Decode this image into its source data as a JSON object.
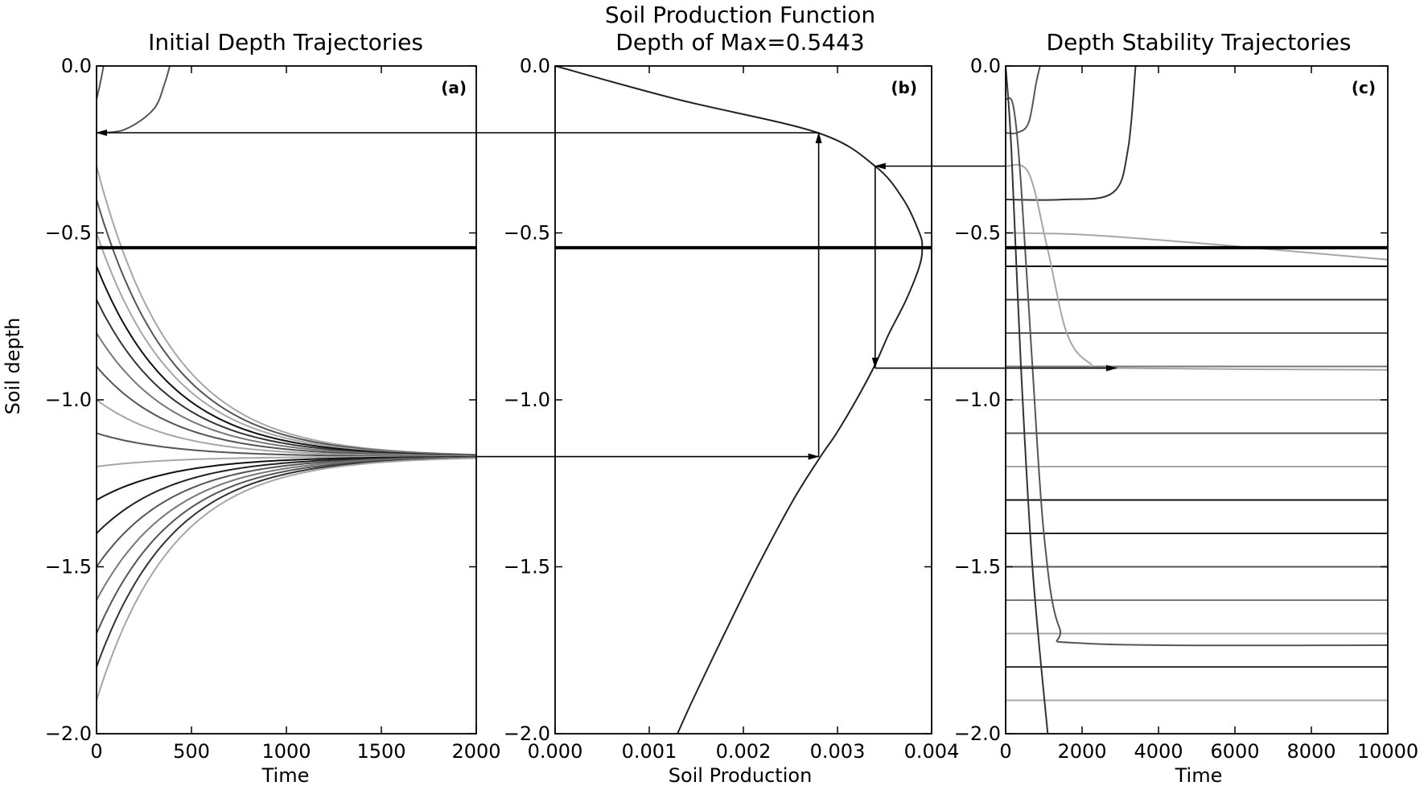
{
  "figure": {
    "suptitle_line1": "Soil Production Function",
    "suptitle_line2": "Depth of Max=0.5443",
    "ylabel": "Soil depth"
  },
  "chart_data": [
    {
      "id": "a",
      "type": "line",
      "title": "Initial Depth Trajectories",
      "panel_label": "(a)",
      "xlabel": "Time",
      "ylabel": "Soil depth",
      "xlim": [
        0,
        2000
      ],
      "ylim": [
        -2.0,
        0.0
      ],
      "xticks": [
        0,
        500,
        1000,
        1500,
        2000
      ],
      "xtick_labels": [
        "0",
        "500",
        "1000",
        "1500",
        "2000"
      ],
      "yticks": [
        0.0,
        -0.5,
        -1.0,
        -1.5,
        -2.0
      ],
      "ytick_labels": [
        "0.0",
        "−0.5",
        "−1.0",
        "−1.5",
        "−2.0"
      ],
      "max_depth_line": -0.5443,
      "steady_depth": -1.17,
      "decay_time": 400,
      "thin_start_depths": [
        -0.1,
        -0.2
      ],
      "series_start_depths": [
        -0.3,
        -0.4,
        -0.5,
        -0.6,
        -0.7,
        -0.8,
        -0.9,
        -1.0,
        -1.1,
        -1.2,
        -1.3,
        -1.4,
        -1.5,
        -1.6,
        -1.7,
        -1.8,
        -1.9
      ],
      "series_colors": [
        "#a6a6a6",
        "#555555",
        "#a6a6a6",
        "#111111",
        "#333333",
        "#777777",
        "#555555",
        "#a6a6a6",
        "#555555",
        "#a6a6a6",
        "#111111",
        "#222222",
        "#555555",
        "#777777",
        "#555555",
        "#333333",
        "#a6a6a6"
      ]
    },
    {
      "id": "b",
      "type": "line",
      "title": "Soil Production Function",
      "panel_label": "(b)",
      "xlabel": "Soil Production",
      "xlim": [
        0.0,
        0.004
      ],
      "ylim": [
        -2.0,
        0.0
      ],
      "xticks": [
        0.0,
        0.001,
        0.002,
        0.003,
        0.004
      ],
      "xtick_labels": [
        "0.000",
        "0.001",
        "0.002",
        "0.003",
        "0.004"
      ],
      "yticks": [
        0.0,
        -0.5,
        -1.0,
        -1.5,
        -2.0
      ],
      "ytick_labels": [
        "0.0",
        "−0.5",
        "−1.0",
        "−1.5",
        "−2.0"
      ],
      "max_depth_line": -0.5443,
      "curve": {
        "depth": [
          0.0,
          -0.1,
          -0.2,
          -0.3,
          -0.4,
          -0.5,
          -0.5443,
          -0.6,
          -0.7,
          -0.8,
          -0.9,
          -1.0,
          -1.1,
          -1.17,
          -1.3,
          -1.5,
          -1.7,
          -1.9,
          -2.0
        ],
        "production": [
          0.0,
          0.0013,
          0.00279,
          0.0034,
          0.0037,
          0.00387,
          0.0039,
          0.00387,
          0.00373,
          0.00355,
          0.00339,
          0.0032,
          0.00299,
          0.00282,
          0.00253,
          0.00215,
          0.0018,
          0.00146,
          0.0013
        ]
      }
    },
    {
      "id": "c",
      "type": "line",
      "title": "Depth Stability Trajectories",
      "panel_label": "(c)",
      "xlabel": "Time",
      "xlim": [
        0,
        10000
      ],
      "ylim": [
        -2.0,
        0.0
      ],
      "xticks": [
        0,
        2000,
        4000,
        6000,
        8000,
        10000
      ],
      "xtick_labels": [
        "0",
        "2000",
        "4000",
        "6000",
        "8000",
        "10000"
      ],
      "yticks": [
        0.0,
        -0.5,
        -1.0,
        -1.5,
        -2.0
      ],
      "ytick_labels": [
        "0.0",
        "−0.5",
        "−1.0",
        "−1.5",
        "−2.0"
      ],
      "max_depth_line": -0.5443,
      "horizontal_depths": [
        -0.6,
        -0.7,
        -0.8,
        -0.9,
        -1.0,
        -1.1,
        -1.2,
        -1.3,
        -1.4,
        -1.5,
        -1.6,
        -1.7,
        -1.8,
        -1.9
      ],
      "horizontal_colors": [
        "#111111",
        "#333333",
        "#555555",
        "#777777",
        "#a6a6a6",
        "#555555",
        "#a6a6a6",
        "#111111",
        "#222222",
        "#555555",
        "#777777",
        "#a6a6a6",
        "#333333",
        "#a6a6a6"
      ],
      "curves": [
        {
          "color": "#555555",
          "points": [
            [
              0,
              -0.2
            ],
            [
              300,
              -0.2
            ],
            [
              600,
              -0.17
            ],
            [
              800,
              -0.05
            ],
            [
              900,
              0.0
            ]
          ]
        },
        {
          "color": "#333333",
          "points": [
            [
              0,
              -0.4
            ],
            [
              1500,
              -0.4
            ],
            [
              2800,
              -0.38
            ],
            [
              3200,
              -0.25
            ],
            [
              3400,
              0.0
            ]
          ]
        },
        {
          "color": "#a6a6a6",
          "points": [
            [
              0,
              -0.5
            ],
            [
              2000,
              -0.505
            ],
            [
              5000,
              -0.53
            ],
            [
              7000,
              -0.55
            ],
            [
              10000,
              -0.58
            ]
          ]
        },
        {
          "color": "#a6a6a6",
          "points": [
            [
              0,
              -0.3
            ],
            [
              600,
              -0.32
            ],
            [
              1100,
              -0.55
            ],
            [
              1600,
              -0.8
            ],
            [
              2200,
              -0.89
            ],
            [
              3000,
              -0.905
            ],
            [
              10000,
              -0.91
            ]
          ]
        },
        {
          "color": "#555555",
          "points": [
            [
              0,
              -0.1
            ],
            [
              200,
              -0.12
            ],
            [
              400,
              -0.35
            ],
            [
              700,
              -0.9
            ],
            [
              1000,
              -1.4
            ],
            [
              1400,
              -1.68
            ],
            [
              2200,
              -1.73
            ],
            [
              10000,
              -1.735
            ]
          ]
        },
        {
          "color": "#333333",
          "points": [
            [
              0,
              0.0
            ],
            [
              150,
              -0.25
            ],
            [
              400,
              -0.9
            ],
            [
              700,
              -1.5
            ],
            [
              1100,
              -2.0
            ]
          ]
        }
      ]
    }
  ],
  "arrows": [
    {
      "from_panel": "b",
      "from": [
        0.0028,
        -0.2
      ],
      "to_panel": "a",
      "to": [
        0,
        -0.2
      ]
    },
    {
      "from_panel": "a",
      "from": [
        2000,
        -1.17
      ],
      "to_panel": "b",
      "to": [
        0.0028,
        -1.17
      ]
    },
    {
      "from_panel": "b",
      "from": [
        0.0028,
        -1.17
      ],
      "to_panel": "b",
      "to": [
        0.0028,
        -0.2
      ]
    },
    {
      "from_panel": "c",
      "from": [
        0,
        -0.3
      ],
      "to_panel": "b",
      "to": [
        0.0034,
        -0.3
      ]
    },
    {
      "from_panel": "b",
      "from": [
        0.0034,
        -0.3
      ],
      "to_panel": "b",
      "to": [
        0.0034,
        -0.905
      ]
    },
    {
      "from_panel": "b",
      "from": [
        0.0034,
        -0.905
      ],
      "to_panel": "c",
      "to": [
        2900,
        -0.905
      ]
    }
  ]
}
